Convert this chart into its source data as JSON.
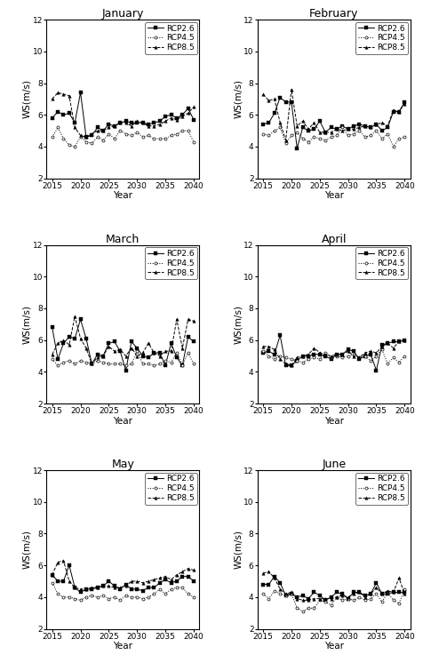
{
  "years": [
    2015,
    2016,
    2017,
    2018,
    2019,
    2020,
    2021,
    2022,
    2023,
    2024,
    2025,
    2026,
    2027,
    2028,
    2029,
    2030,
    2031,
    2032,
    2033,
    2034,
    2035,
    2036,
    2037,
    2038,
    2039,
    2040
  ],
  "months": [
    "January",
    "February",
    "March",
    "April",
    "May",
    "June"
  ],
  "rcp26": {
    "January": [
      5.8,
      6.2,
      6.0,
      6.1,
      5.5,
      7.4,
      4.6,
      4.7,
      5.2,
      5.0,
      5.4,
      5.3,
      5.5,
      5.6,
      5.5,
      5.5,
      5.5,
      5.4,
      5.5,
      5.6,
      5.9,
      6.0,
      5.8,
      6.0,
      6.4,
      5.7
    ],
    "February": [
      5.4,
      5.5,
      6.1,
      7.1,
      6.8,
      6.8,
      3.9,
      5.2,
      5.0,
      5.1,
      5.6,
      4.9,
      5.2,
      5.1,
      5.3,
      5.1,
      5.3,
      5.4,
      5.3,
      5.2,
      5.4,
      5.0,
      5.2,
      6.2,
      6.2,
      6.8
    ],
    "March": [
      6.8,
      4.8,
      5.8,
      6.2,
      6.1,
      7.3,
      6.1,
      4.5,
      5.1,
      5.0,
      5.8,
      5.9,
      5.3,
      4.1,
      5.9,
      5.5,
      5.0,
      4.9,
      5.2,
      5.2,
      4.4,
      5.8,
      4.9,
      4.4,
      6.2,
      5.9
    ],
    "April": [
      5.2,
      5.3,
      5.1,
      6.3,
      4.4,
      4.4,
      4.7,
      5.0,
      5.0,
      5.1,
      5.1,
      5.0,
      4.8,
      5.1,
      5.1,
      5.4,
      5.3,
      4.8,
      5.0,
      5.1,
      4.1,
      5.7,
      5.8,
      5.9,
      5.9,
      6.0
    ],
    "May": [
      5.4,
      5.0,
      5.0,
      6.0,
      4.6,
      4.3,
      4.5,
      4.5,
      4.6,
      4.7,
      5.0,
      4.7,
      4.5,
      4.8,
      4.5,
      4.5,
      4.4,
      4.6,
      4.6,
      4.9,
      5.1,
      4.9,
      5.0,
      5.3,
      5.3,
      5.0
    ],
    "June": [
      4.8,
      4.8,
      5.3,
      4.9,
      4.1,
      4.2,
      4.0,
      4.1,
      3.9,
      4.3,
      4.1,
      3.8,
      4.0,
      4.3,
      4.2,
      3.9,
      4.3,
      4.3,
      4.1,
      4.2,
      4.9,
      4.2,
      4.2,
      4.3,
      4.3,
      4.3
    ]
  },
  "rcp45": {
    "January": [
      4.6,
      5.2,
      4.5,
      4.1,
      4.0,
      4.6,
      4.3,
      4.2,
      4.6,
      4.4,
      4.8,
      4.5,
      5.0,
      4.8,
      4.7,
      4.9,
      4.6,
      4.7,
      4.5,
      4.5,
      4.5,
      4.7,
      4.8,
      5.0,
      5.0,
      4.3
    ],
    "February": [
      4.8,
      4.7,
      5.0,
      5.2,
      4.2,
      4.7,
      4.9,
      4.5,
      4.3,
      4.6,
      4.5,
      4.4,
      4.6,
      4.7,
      5.2,
      4.7,
      4.8,
      5.0,
      4.6,
      4.7,
      5.0,
      4.5,
      4.8,
      4.0,
      4.5,
      4.6
    ],
    "March": [
      4.8,
      4.4,
      4.6,
      4.7,
      4.5,
      4.7,
      4.6,
      4.5,
      4.7,
      4.6,
      4.5,
      4.5,
      4.5,
      4.4,
      4.5,
      5.3,
      4.5,
      4.5,
      4.4,
      4.5,
      4.7,
      4.6,
      5.2,
      4.4,
      5.2,
      4.5
    ],
    "April": [
      5.3,
      5.0,
      4.8,
      5.0,
      4.9,
      4.8,
      4.7,
      4.6,
      4.8,
      4.9,
      4.8,
      5.2,
      4.9,
      5.0,
      4.9,
      5.0,
      5.1,
      4.9,
      5.0,
      4.7,
      5.0,
      5.4,
      4.5,
      4.9,
      4.6,
      5.0
    ],
    "May": [
      4.9,
      4.2,
      4.0,
      4.0,
      3.9,
      3.8,
      4.0,
      4.1,
      4.0,
      4.1,
      3.9,
      4.0,
      3.8,
      4.1,
      4.0,
      4.0,
      3.9,
      4.0,
      4.2,
      4.5,
      4.2,
      4.5,
      4.6,
      4.6,
      4.2,
      4.0
    ],
    "June": [
      4.2,
      3.9,
      4.4,
      4.2,
      4.1,
      4.2,
      3.3,
      3.1,
      3.3,
      3.3,
      3.8,
      3.7,
      3.5,
      4.0,
      3.8,
      3.9,
      3.8,
      4.0,
      3.8,
      3.9,
      4.2,
      3.7,
      4.3,
      3.8,
      3.6,
      4.5
    ]
  },
  "rcp85": {
    "January": [
      7.0,
      7.4,
      7.3,
      7.2,
      5.2,
      4.7,
      4.6,
      4.8,
      5.0,
      5.0,
      5.2,
      5.3,
      5.5,
      5.5,
      5.3,
      5.6,
      5.5,
      5.3,
      5.3,
      5.4,
      5.6,
      5.8,
      5.7,
      5.9,
      6.1,
      6.5
    ],
    "February": [
      7.3,
      6.9,
      7.0,
      5.5,
      4.4,
      7.6,
      5.3,
      5.6,
      5.1,
      5.5,
      4.9,
      4.9,
      4.9,
      5.1,
      5.0,
      5.1,
      5.1,
      5.2,
      5.3,
      5.2,
      5.4,
      5.5,
      5.3,
      6.3,
      6.2,
      6.7
    ],
    "March": [
      5.1,
      5.8,
      6.0,
      5.7,
      7.5,
      6.1,
      5.5,
      4.5,
      4.9,
      5.0,
      5.6,
      5.3,
      5.4,
      5.0,
      5.5,
      5.0,
      5.2,
      5.8,
      5.2,
      5.0,
      5.3,
      5.3,
      7.3,
      5.5,
      7.3,
      7.2
    ],
    "April": [
      5.6,
      5.6,
      5.4,
      4.8,
      4.5,
      4.4,
      4.9,
      5.0,
      5.1,
      5.5,
      5.2,
      5.1,
      5.0,
      5.1,
      5.1,
      5.3,
      5.0,
      4.9,
      5.2,
      5.3,
      5.2,
      5.6,
      5.8,
      5.5,
      5.9,
      6.0
    ],
    "May": [
      5.4,
      6.2,
      6.3,
      5.0,
      4.6,
      4.5,
      4.5,
      4.6,
      4.6,
      4.7,
      4.7,
      4.6,
      4.6,
      4.7,
      5.0,
      5.0,
      4.9,
      5.0,
      5.1,
      5.2,
      5.3,
      5.1,
      5.4,
      5.6,
      5.8,
      5.7
    ],
    "June": [
      5.5,
      5.6,
      5.2,
      4.5,
      4.2,
      4.3,
      3.9,
      3.8,
      3.8,
      3.9,
      3.9,
      3.9,
      3.9,
      4.0,
      4.1,
      4.0,
      4.2,
      4.3,
      4.0,
      4.2,
      4.6,
      4.2,
      4.4,
      4.3,
      5.2,
      4.2
    ]
  },
  "ylim": [
    2,
    12
  ],
  "yticks": [
    2,
    4,
    6,
    8,
    10,
    12
  ],
  "xlim": [
    2014,
    2041
  ],
  "xticks": [
    2015,
    2020,
    2025,
    2030,
    2035,
    2040
  ],
  "xlabel": "Year",
  "ylabel": "WS(m/s)",
  "title_fontsize": 9,
  "tick_fontsize": 6.5,
  "label_fontsize": 7.5,
  "legend_fontsize": 6.5
}
